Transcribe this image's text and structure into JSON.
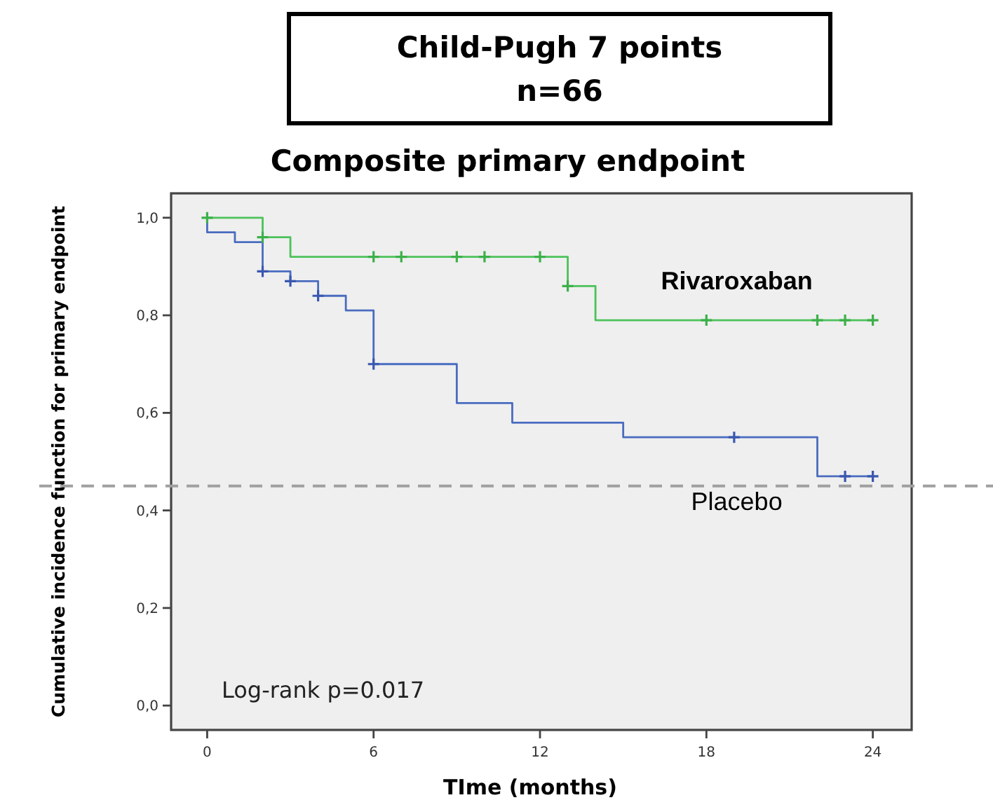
{
  "chart_data": {
    "type": "step",
    "title": "Child-Pugh 7 points",
    "subtitle": "n=66",
    "xlabel": "TIme (months)",
    "ylabel": "Cumulative incidence function for primary endpoint",
    "annotations": [
      "Composite primary endpoint",
      "Log-rank p=0.017"
    ],
    "xlim": [
      -1.3,
      25.4
    ],
    "xticks": [
      0,
      6,
      12,
      18,
      24
    ],
    "ylim": [
      -0.05,
      1.05
    ],
    "yticks": [
      {
        "value": 0,
        "label": "0,0"
      },
      {
        "value": 0.2,
        "label": "0,2"
      },
      {
        "value": 0.4,
        "label": "0,4"
      },
      {
        "value": 0.6,
        "label": "0,6"
      },
      {
        "value": 0.8,
        "label": "0,8"
      },
      {
        "value": 1,
        "label": "1,0"
      }
    ],
    "grid": false,
    "series": [
      {
        "name": "Placebo",
        "color": "#4a6cc0",
        "x": [
          0,
          0,
          1,
          2,
          3,
          4,
          5,
          6,
          9,
          11,
          15,
          22,
          24
        ],
        "values": [
          1.0,
          0.97,
          0.95,
          0.89,
          0.87,
          0.84,
          0.81,
          0.7,
          0.62,
          0.58,
          0.55,
          0.47,
          0.47
        ]
      },
      {
        "name": "Rivaroxaban",
        "color": "#4cc25a",
        "x": [
          0,
          2,
          3,
          13,
          14,
          24
        ],
        "values": [
          1.0,
          0.96,
          0.92,
          0.86,
          0.79,
          0.79
        ]
      },
      {
        "type": "scatter",
        "marker": "cross",
        "color": "#3a58b0",
        "x": [
          2,
          3,
          4,
          6,
          19,
          23,
          24
        ],
        "values": [
          0.89,
          0.87,
          0.84,
          0.7,
          0.55,
          0.47,
          0.47
        ]
      },
      {
        "type": "scatter",
        "marker": "cross",
        "color": "#3cb04a",
        "x": [
          0,
          2,
          6,
          7,
          9,
          10,
          12,
          13,
          18,
          22,
          23,
          24
        ],
        "values": [
          1.0,
          0.96,
          0.92,
          0.92,
          0.92,
          0.92,
          0.92,
          0.86,
          0.79,
          0.79,
          0.79,
          0.79
        ]
      }
    ],
    "ref_lines": [
      {
        "axis": "y",
        "value": 0.45,
        "color": "#a0a0a0",
        "line_style": "dashed"
      }
    ]
  }
}
